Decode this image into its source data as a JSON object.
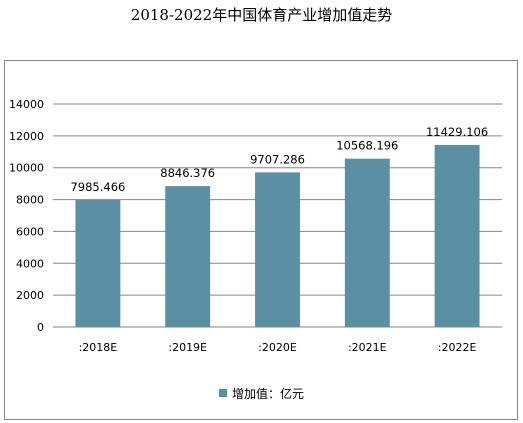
{
  "chart_data": {
    "type": "bar",
    "title": "2018-2022年中国体育产业增加值走势",
    "categories": [
      ":2018E",
      ":2019E",
      ":2020E",
      ":2021E",
      ":2022E"
    ],
    "series": [
      {
        "name": "增加值：亿元",
        "values": [
          7985.466,
          8846.376,
          9707.286,
          10568.196,
          11429.106
        ],
        "value_labels": [
          "7985.466",
          "8846.376",
          "9707.286",
          "10568.196",
          "11429.106"
        ]
      }
    ],
    "ylim": [
      0,
      14000
    ],
    "yticks": [
      "0",
      "2000",
      "4000",
      "6000",
      "8000",
      "10000",
      "12000",
      "14000"
    ],
    "ytick_values": [
      0,
      2000,
      4000,
      6000,
      8000,
      10000,
      12000,
      14000
    ],
    "grid": true,
    "legend_position": "bottom",
    "bar_color": "#5b8fa3",
    "grid_color": "#868686"
  }
}
